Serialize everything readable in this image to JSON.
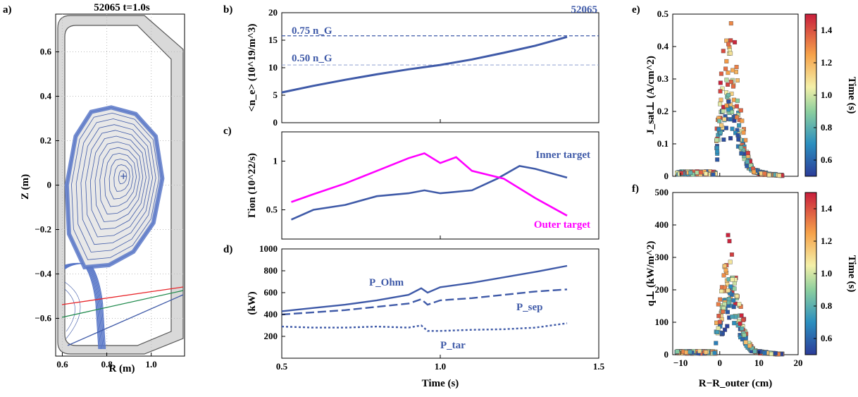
{
  "colors": {
    "blue": "#3f5aa8",
    "magenta": "#ff00ff",
    "red": "#e8252a",
    "green": "#1f8a4c",
    "wall": "#d9d9d9",
    "core": "#e8e8e8"
  },
  "chart_data": [
    {
      "panel_label": "a)",
      "type": "line",
      "title": "52065 t=1.0s",
      "xlabel": "R (m)",
      "ylabel": "Z (m)",
      "xlim": [
        0.57,
        1.15
      ],
      "ylim": [
        -0.77,
        0.77
      ],
      "xticks": [
        "0.6",
        "0.8",
        "1.0"
      ],
      "yticks": [
        "0.6",
        "0.4",
        "0.2",
        "0",
        "−0.2",
        "−0.4",
        "−0.6"
      ],
      "series": [
        {
          "name": "magnetic axis",
          "x": [
            0.875
          ],
          "y": [
            0.04
          ]
        },
        {
          "name": "LCFS",
          "x": [
            0.62,
            0.66,
            0.73,
            0.82,
            0.93,
            1.02,
            1.05,
            1.01,
            0.92,
            0.81,
            0.7,
            0.63,
            0.62
          ],
          "y": [
            0.0,
            0.22,
            0.33,
            0.35,
            0.32,
            0.22,
            0.03,
            -0.17,
            -0.3,
            -0.36,
            -0.37,
            -0.22,
            0.0
          ]
        }
      ]
    },
    {
      "panel_label": "b)",
      "type": "line",
      "xlabel": "",
      "ylabel": "<n_e> (10^19/m^3)",
      "xlim": [
        0.5,
        1.5
      ],
      "ylim": [
        0,
        20
      ],
      "yticks": [
        "0",
        "5",
        "10",
        "15",
        "20"
      ],
      "tag": "52065",
      "annotations": [
        {
          "text": "0.75 n_G",
          "value": 15.8
        },
        {
          "text": "0.50 n_G",
          "value": 10.5
        }
      ],
      "series": [
        {
          "x": [
            0.5,
            0.6,
            0.7,
            0.8,
            0.9,
            1.0,
            1.1,
            1.2,
            1.3,
            1.4
          ],
          "y": [
            5.5,
            6.7,
            7.8,
            8.8,
            9.7,
            10.5,
            11.5,
            12.7,
            14.0,
            15.6
          ]
        }
      ]
    },
    {
      "panel_label": "c)",
      "type": "line",
      "ylabel": "Γion (10^22/s)",
      "xlim": [
        0.5,
        1.5
      ],
      "ylim": [
        0.2,
        1.3
      ],
      "yticks": [
        "0.5",
        "1"
      ],
      "series": [
        {
          "name": "Inner target",
          "x": [
            0.53,
            0.6,
            0.7,
            0.8,
            0.9,
            0.95,
            1.0,
            1.1,
            1.18,
            1.25,
            1.3,
            1.4
          ],
          "y": [
            0.4,
            0.5,
            0.55,
            0.64,
            0.67,
            0.7,
            0.67,
            0.7,
            0.82,
            0.95,
            0.92,
            0.83
          ]
        },
        {
          "name": "Outer target",
          "x": [
            0.53,
            0.6,
            0.7,
            0.8,
            0.9,
            0.95,
            1.0,
            1.05,
            1.1,
            1.2,
            1.3,
            1.4
          ],
          "y": [
            0.58,
            0.66,
            0.77,
            0.9,
            1.03,
            1.08,
            0.98,
            1.04,
            0.9,
            0.82,
            0.62,
            0.44
          ]
        }
      ]
    },
    {
      "panel_label": "d)",
      "type": "line",
      "ylabel": "(kW)",
      "xlabel": "Time (s)",
      "xlim": [
        0.5,
        1.5
      ],
      "ylim": [
        0,
        1000
      ],
      "xticks": [
        "0.5",
        "1.0",
        "1.5"
      ],
      "yticks": [
        "200",
        "400",
        "600",
        "800",
        "1000"
      ],
      "series": [
        {
          "name": "P_Ohm",
          "x": [
            0.5,
            0.6,
            0.7,
            0.8,
            0.9,
            0.94,
            0.96,
            1.0,
            1.1,
            1.2,
            1.3,
            1.4
          ],
          "y": [
            430,
            460,
            490,
            530,
            580,
            640,
            600,
            650,
            690,
            740,
            790,
            845
          ]
        },
        {
          "name": "P_sep",
          "x": [
            0.5,
            0.6,
            0.7,
            0.8,
            0.9,
            0.94,
            0.96,
            1.0,
            1.1,
            1.2,
            1.3,
            1.4
          ],
          "y": [
            400,
            420,
            440,
            470,
            500,
            540,
            490,
            530,
            550,
            580,
            610,
            630
          ]
        },
        {
          "name": "P_tar",
          "x": [
            0.5,
            0.6,
            0.7,
            0.8,
            0.9,
            0.94,
            0.96,
            1.0,
            1.1,
            1.2,
            1.3,
            1.4
          ],
          "y": [
            290,
            280,
            280,
            290,
            280,
            300,
            250,
            250,
            260,
            265,
            280,
            320
          ]
        }
      ]
    },
    {
      "panel_label": "e)",
      "type": "scatter",
      "ylabel": "J_sat⊥ (A/cm^2)",
      "xlim": [
        -12,
        20
      ],
      "ylim": [
        0,
        0.5
      ],
      "yticks": [
        "0",
        "0.1",
        "0.2",
        "0.3",
        "0.4",
        "0.5"
      ],
      "colorbar": {
        "label": "Time (s)",
        "ticks": [
          "0.6",
          "0.8",
          "1.0",
          "1.2",
          "1.4"
        ],
        "range": [
          0.5,
          1.5
        ]
      }
    },
    {
      "panel_label": "f)",
      "type": "scatter",
      "ylabel": "q⊥ (kW/m^2)",
      "xlabel": "R−R_outer (cm)",
      "xlim": [
        -12,
        20
      ],
      "ylim": [
        0,
        500
      ],
      "xticks": [
        "−10",
        "0",
        "10",
        "20"
      ],
      "yticks": [
        "0",
        "100",
        "200",
        "300",
        "400",
        "500"
      ],
      "colorbar": {
        "label": "Time (s)",
        "ticks": [
          "0.6",
          "0.8",
          "1.0",
          "1.2",
          "1.4"
        ],
        "range": [
          0.5,
          1.5
        ]
      }
    }
  ]
}
